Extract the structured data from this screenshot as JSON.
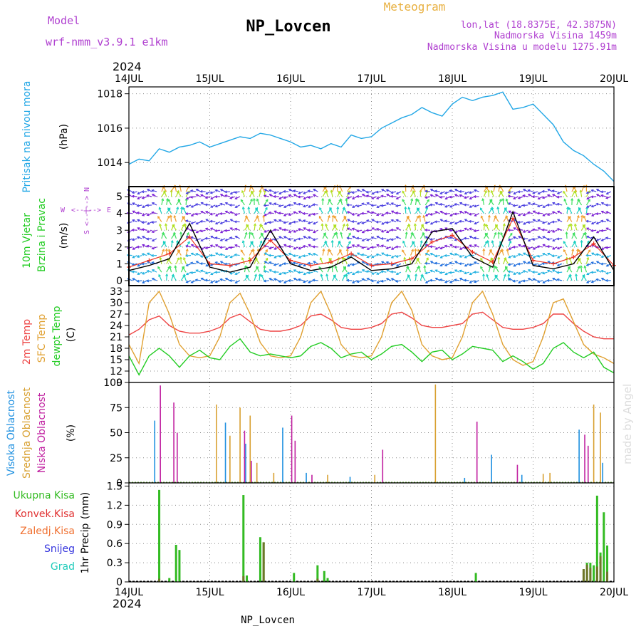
{
  "header": {
    "model_label": "Model",
    "model_name": "wrf-nmm_v3.9.1 e1km",
    "station": "NP_Lovcen",
    "product": "Meteogram",
    "lonlat": "lon,lat (18.8375E, 42.3875N)",
    "altitude": "Nadmorska Visina 1459m",
    "model_altitude": "Nadmorska Visina u modelu 1275.91m",
    "year": "2024",
    "footer_station": "NP_Lovcen",
    "credit": "made by Angel"
  },
  "colors": {
    "pressure": "#22a7e6",
    "wind_speed": "#000000",
    "gust": "#ee3322",
    "t2m": "#ee4444",
    "sfc": "#e0a030",
    "dewpt": "#22cc22",
    "high_cloud": "#1e90e0",
    "mid_cloud": "#d8a030",
    "low_cloud": "#c020a0",
    "total_precip": "#33bb22",
    "conv_precip": "#e03030",
    "freezing": "#f07030",
    "snow": "#3333dd",
    "hail": "#22ccbb",
    "magenta_text": "#b040d0",
    "orange_text": "#e8b040"
  },
  "chart_data": [
    {
      "type": "line",
      "panel": "pressure",
      "x_categories": [
        "14JUL",
        "15JUL",
        "16JUL",
        "17JUL",
        "18JUL",
        "19JUL",
        "20JUL"
      ],
      "ylabel_left": "Pritisak na nivou mora",
      "unit": "(hPa)",
      "yticks": [
        "1014",
        "1016",
        "1018"
      ],
      "ylim": [
        1012.6,
        1018.4
      ],
      "x_hours": [
        0,
        3,
        6,
        9,
        12,
        15,
        18,
        21,
        24,
        27,
        30,
        33,
        36,
        39,
        42,
        45,
        48,
        51,
        54,
        57,
        60,
        63,
        66,
        69,
        72,
        75,
        78,
        81,
        84,
        87,
        90,
        93,
        96,
        99,
        102,
        105,
        108,
        111,
        114,
        117,
        120,
        123,
        126,
        129,
        132,
        135,
        138,
        141,
        144
      ],
      "values": [
        1013.9,
        1014.2,
        1014.1,
        1014.8,
        1014.6,
        1014.9,
        1015.0,
        1015.2,
        1014.9,
        1015.1,
        1015.3,
        1015.5,
        1015.4,
        1015.7,
        1015.6,
        1015.4,
        1015.2,
        1014.9,
        1015.0,
        1014.8,
        1015.1,
        1014.9,
        1015.6,
        1015.4,
        1015.5,
        1016.0,
        1016.3,
        1016.6,
        1016.8,
        1017.2,
        1016.9,
        1016.7,
        1017.4,
        1017.8,
        1017.6,
        1017.8,
        1017.9,
        1018.1,
        1017.1,
        1017.2,
        1017.4,
        1016.8,
        1016.2,
        1015.2,
        1014.7,
        1014.4,
        1013.9,
        1013.5,
        1012.9
      ]
    },
    {
      "type": "line",
      "panel": "wind",
      "ylabel_left": [
        "10m Vjetar",
        "Brzina i Pravac"
      ],
      "unit": "(m/s)",
      "compass": {
        "n": "N",
        "s": "S",
        "e": "E",
        "w": "W"
      },
      "yticks": [
        "0",
        "1",
        "2",
        "3",
        "4",
        "5"
      ],
      "ylim": [
        -0.3,
        5.6
      ],
      "x_hours": [
        0,
        6,
        12,
        18,
        24,
        30,
        36,
        42,
        48,
        54,
        60,
        66,
        72,
        78,
        84,
        90,
        96,
        102,
        108,
        114,
        120,
        126,
        132,
        138,
        144
      ],
      "series": [
        {
          "name": "speed",
          "values": [
            0.6,
            0.9,
            1.3,
            3.4,
            0.8,
            0.5,
            0.8,
            3.0,
            1.0,
            0.6,
            0.8,
            1.4,
            0.6,
            0.7,
            1.0,
            2.9,
            3.1,
            1.4,
            0.8,
            4.1,
            0.9,
            0.7,
            1.0,
            2.6,
            0.6
          ]
        },
        {
          "name": "gust",
          "values": [
            0.8,
            1.2,
            1.6,
            2.6,
            1.0,
            0.9,
            1.2,
            2.4,
            1.2,
            0.9,
            1.1,
            1.6,
            0.9,
            1.0,
            1.3,
            2.3,
            2.7,
            1.7,
            1.1,
            3.7,
            1.2,
            1.0,
            1.4,
            2.2,
            0.9
          ]
        }
      ]
    },
    {
      "type": "line",
      "panel": "temperature",
      "ylabel_left": [
        "2m Temp",
        "SFC Temp",
        "dewpt Temp"
      ],
      "unit": "(C)",
      "yticks": [
        "9",
        "12",
        "15",
        "18",
        "21",
        "24",
        "27",
        "30",
        "33"
      ],
      "ylim": [
        9,
        34.5
      ],
      "x_hours": [
        0,
        3,
        6,
        9,
        12,
        15,
        18,
        21,
        24,
        27,
        30,
        33,
        36,
        39,
        42,
        45,
        48,
        51,
        54,
        57,
        60,
        63,
        66,
        69,
        72,
        75,
        78,
        81,
        84,
        87,
        90,
        93,
        96,
        99,
        102,
        105,
        108,
        111,
        114,
        117,
        120,
        123,
        126,
        129,
        132,
        135,
        138,
        141,
        144
      ],
      "series": [
        {
          "name": "2m Temp",
          "values": [
            21.5,
            23.0,
            25.5,
            26.5,
            24.0,
            22.5,
            22.0,
            22.0,
            22.5,
            23.5,
            26.0,
            27.0,
            25.0,
            23.0,
            22.5,
            22.5,
            23.0,
            24.0,
            26.5,
            27.0,
            25.5,
            23.5,
            23.0,
            23.0,
            23.5,
            24.5,
            27.0,
            27.5,
            26.0,
            24.0,
            23.5,
            23.5,
            24.0,
            24.5,
            27.0,
            27.5,
            25.5,
            23.5,
            23.0,
            23.0,
            23.5,
            24.5,
            27.0,
            27.0,
            24.5,
            22.5,
            21.0,
            20.5,
            20.5
          ]
        },
        {
          "name": "SFC Temp",
          "values": [
            19.0,
            14.0,
            30.0,
            33.0,
            27.0,
            19.0,
            16.0,
            15.5,
            16.0,
            21.0,
            30.0,
            32.5,
            27.0,
            19.5,
            16.0,
            15.5,
            16.0,
            21.0,
            30.0,
            33.0,
            27.0,
            19.0,
            16.0,
            15.5,
            16.0,
            21.0,
            30.0,
            33.0,
            28.0,
            19.0,
            16.0,
            15.0,
            15.5,
            21.0,
            30.0,
            33.0,
            27.0,
            19.0,
            15.0,
            13.5,
            14.5,
            21.0,
            30.0,
            31.0,
            25.0,
            19.0,
            16.5,
            15.5,
            14.0
          ]
        },
        {
          "name": "dewpt Temp",
          "values": [
            16.0,
            11.0,
            16.0,
            18.0,
            16.0,
            13.0,
            16.0,
            17.5,
            15.5,
            15.0,
            18.5,
            20.5,
            17.0,
            16.0,
            16.5,
            16.0,
            15.5,
            16.0,
            18.5,
            19.5,
            18.0,
            15.5,
            16.5,
            17.0,
            15.0,
            16.5,
            18.5,
            19.0,
            17.0,
            14.5,
            17.0,
            17.5,
            15.0,
            16.5,
            18.5,
            18.0,
            17.5,
            14.5,
            16.0,
            14.5,
            12.5,
            14.0,
            18.0,
            19.5,
            17.0,
            15.5,
            17.0,
            13.0,
            11.5
          ]
        }
      ]
    },
    {
      "type": "bar",
      "panel": "clouds",
      "ylabel_left": [
        "Visoka Oblacnost",
        "Srednja Oblacnost",
        "Niska Oblacnost"
      ],
      "unit": "(%)",
      "yticks": [
        "0",
        "25",
        "50",
        "75",
        "100"
      ],
      "ylim": [
        0,
        100
      ],
      "series": [
        {
          "name": "Visoka Oblacnost",
          "points": [
            [
              8,
              62
            ],
            [
              29,
              60
            ],
            [
              35,
              39
            ],
            [
              46,
              55
            ],
            [
              53,
              10
            ],
            [
              66,
              6
            ],
            [
              100,
              5
            ],
            [
              108,
              28
            ],
            [
              117,
              8
            ],
            [
              134,
              53
            ],
            [
              141,
              20
            ]
          ]
        },
        {
          "name": "Srednja Oblacnost",
          "points": [
            [
              26,
              78
            ],
            [
              30,
              47
            ],
            [
              33,
              75
            ],
            [
              36,
              67
            ],
            [
              38,
              20
            ],
            [
              43,
              10
            ],
            [
              59,
              8
            ],
            [
              73,
              8
            ],
            [
              91,
              98
            ],
            [
              123,
              9
            ],
            [
              125,
              10
            ],
            [
              138,
              78
            ],
            [
              140,
              70
            ]
          ]
        },
        {
          "name": "Niska Oblacnost",
          "points": [
            [
              9,
              97
            ],
            [
              13,
              80
            ],
            [
              14,
              50
            ],
            [
              34,
              52
            ],
            [
              36,
              22
            ],
            [
              48,
              67
            ],
            [
              49,
              42
            ],
            [
              54,
              8
            ],
            [
              75,
              33
            ],
            [
              103,
              61
            ],
            [
              115,
              18
            ],
            [
              135,
              48
            ],
            [
              136,
              37
            ]
          ]
        }
      ]
    },
    {
      "type": "bar",
      "panel": "precipitation",
      "ylabel_left": "1hr Precip",
      "unit": "(mm)",
      "legend": [
        "Ukupna Kisa",
        "Konvek.Kisa",
        "Zaledj.Kisa",
        "Snijeg",
        "Grad"
      ],
      "yticks": [
        "0",
        "0.3",
        "0.6",
        "0.9",
        "1.2",
        "1.5"
      ],
      "ylim": [
        0,
        1.55
      ],
      "series": [
        {
          "name": "Ukupna Kisa",
          "points": [
            [
              9,
              1.44
            ],
            [
              12,
              0.06
            ],
            [
              14,
              0.58
            ],
            [
              15,
              0.5
            ],
            [
              34,
              1.36
            ],
            [
              35,
              0.1
            ],
            [
              39,
              0.7
            ],
            [
              40,
              0.62
            ],
            [
              49,
              0.14
            ],
            [
              56,
              0.26
            ],
            [
              58,
              0.17
            ],
            [
              59,
              0.06
            ],
            [
              103,
              0.14
            ],
            [
              135,
              0.2
            ],
            [
              136,
              0.3
            ],
            [
              137,
              0.3
            ],
            [
              138,
              0.26
            ],
            [
              139,
              1.35
            ],
            [
              140,
              0.46
            ],
            [
              141,
              1.09
            ],
            [
              142,
              0.57
            ]
          ]
        },
        {
          "name": "Konvek.Kisa",
          "points": [
            [
              9,
              0.05
            ],
            [
              34,
              0.09
            ],
            [
              40,
              0.62
            ],
            [
              56,
              0.05
            ],
            [
              135,
              0.2
            ],
            [
              136,
              0.27
            ],
            [
              137,
              0.22
            ],
            [
              139,
              0.24
            ],
            [
              140,
              0.4
            ],
            [
              142,
              0.16
            ]
          ]
        }
      ]
    }
  ]
}
